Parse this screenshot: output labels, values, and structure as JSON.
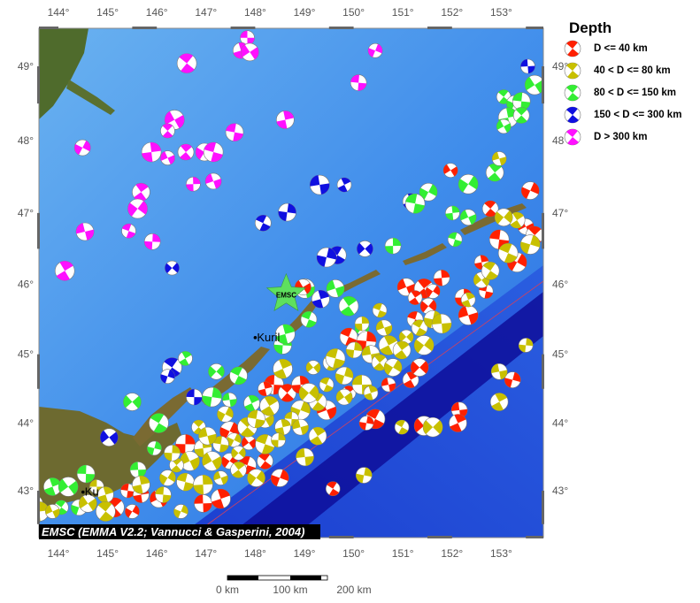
{
  "map": {
    "projection": "mercator",
    "lon_range": [
      143.6,
      153.9
    ],
    "lat_range": [
      42.4,
      49.5
    ],
    "lon_ticks": [
      "144°",
      "145°",
      "146°",
      "147°",
      "148°",
      "149°",
      "150°",
      "151°",
      "152°",
      "153°"
    ],
    "lat_ticks": [
      "49°",
      "48°",
      "47°",
      "46°",
      "45°",
      "44°",
      "43°"
    ],
    "colors": {
      "shallow_ocean": "#5aa6ec",
      "ocean": "#2f78e6",
      "trench": "#0a0a8c",
      "land": "#7a6a32"
    },
    "places": [
      {
        "name": "Kuril",
        "lon": 148.0,
        "lat": 45.24
      },
      {
        "name": "Ku",
        "lon": 144.5,
        "lat": 42.98
      }
    ],
    "emsc_marker": {
      "label": "EMSC",
      "lon": 148.63,
      "lat": 45.86,
      "color": "#5ee05e"
    },
    "credit": "EMSC (EMMA V2.2; Vannucci & Gasperini, 2004)",
    "scale_bar": {
      "labels": [
        "0 km",
        "100 km",
        "200 km"
      ]
    }
  },
  "legend": {
    "title": "Depth",
    "items": [
      {
        "label": "D <= 40 km",
        "color": "#ff2000"
      },
      {
        "label": "40 < D <= 80 km",
        "color": "#c8c000"
      },
      {
        "label": "80 < D <= 150 km",
        "color": "#33ee33"
      },
      {
        "label": "150 < D <= 300 km",
        "color": "#1010e0"
      },
      {
        "label": "D > 300 km",
        "color": "#ff10ff"
      }
    ]
  },
  "events": [
    [
      147.84,
      49.38,
      4
    ],
    [
      147.71,
      49.21,
      4
    ],
    [
      147.89,
      49.19,
      4
    ],
    [
      146.61,
      49.04,
      4
    ],
    [
      150.44,
      49.21,
      4
    ],
    [
      150.1,
      48.78,
      4
    ],
    [
      148.61,
      48.28,
      4
    ],
    [
      146.36,
      48.28,
      4
    ],
    [
      146.22,
      48.13,
      4
    ],
    [
      144.49,
      47.9,
      4
    ],
    [
      147.58,
      48.11,
      4
    ],
    [
      145.89,
      47.84,
      4
    ],
    [
      146.22,
      47.76,
      4
    ],
    [
      146.59,
      47.84,
      4
    ],
    [
      146.97,
      47.84,
      4
    ],
    [
      147.15,
      47.84,
      4
    ],
    [
      146.74,
      47.4,
      4
    ],
    [
      147.15,
      47.44,
      4
    ],
    [
      145.68,
      47.29,
      4
    ],
    [
      145.61,
      47.06,
      4
    ],
    [
      145.43,
      46.75,
      4
    ],
    [
      145.91,
      46.6,
      4
    ],
    [
      144.54,
      46.74,
      4
    ],
    [
      144.13,
      46.19,
      4
    ],
    [
      146.31,
      46.23,
      3
    ],
    [
      148.16,
      46.86,
      3
    ],
    [
      148.65,
      47.01,
      3
    ],
    [
      149.31,
      47.39,
      3
    ],
    [
      149.81,
      47.39,
      3
    ],
    [
      150.23,
      46.5,
      3
    ],
    [
      149.67,
      46.41,
      3
    ],
    [
      149.45,
      46.38,
      3
    ],
    [
      153.54,
      49.0,
      3
    ],
    [
      151.16,
      47.16,
      3
    ],
    [
      145.03,
      43.79,
      3
    ],
    [
      146.31,
      44.81,
      3
    ],
    [
      146.22,
      44.68,
      3
    ],
    [
      146.76,
      44.38,
      3
    ],
    [
      149.33,
      45.79,
      3
    ],
    [
      153.68,
      48.75,
      2
    ],
    [
      153.05,
      48.59,
      2
    ],
    [
      153.27,
      48.5,
      2
    ],
    [
      153.41,
      48.53,
      2
    ],
    [
      153.14,
      48.31,
      2
    ],
    [
      153.05,
      48.19,
      2
    ],
    [
      153.41,
      48.34,
      2
    ],
    [
      151.52,
      47.29,
      2
    ],
    [
      151.25,
      47.13,
      2
    ],
    [
      152.01,
      47.0,
      2
    ],
    [
      152.33,
      46.94,
      2
    ],
    [
      152.87,
      47.56,
      2
    ],
    [
      152.33,
      47.4,
      2
    ],
    [
      152.06,
      46.63,
      2
    ],
    [
      150.8,
      46.54,
      2
    ],
    [
      149.63,
      45.94,
      2
    ],
    [
      149.9,
      45.69,
      2
    ],
    [
      150.17,
      45.38,
      2
    ],
    [
      149.09,
      45.5,
      2
    ],
    [
      148.56,
      45.13,
      2
    ],
    [
      149.01,
      45.94,
      2
    ],
    [
      146.58,
      44.94,
      2
    ],
    [
      147.21,
      44.75,
      2
    ],
    [
      147.66,
      44.69,
      2
    ],
    [
      147.12,
      44.38,
      2
    ],
    [
      147.48,
      44.34,
      2
    ],
    [
      147.93,
      44.29,
      2
    ],
    [
      145.5,
      44.31,
      2
    ],
    [
      146.04,
      44.0,
      2
    ],
    [
      145.95,
      43.63,
      2
    ],
    [
      145.62,
      43.31,
      2
    ],
    [
      143.88,
      43.06,
      2
    ],
    [
      144.2,
      43.06,
      2
    ],
    [
      144.06,
      42.75,
      2
    ],
    [
      144.42,
      42.75,
      2
    ],
    [
      144.56,
      43.25,
      2
    ],
    [
      148.61,
      45.29,
      2
    ],
    [
      151.97,
      47.59,
      0
    ],
    [
      152.78,
      47.06,
      0
    ],
    [
      153.59,
      47.31,
      0
    ],
    [
      152.96,
      46.63,
      0
    ],
    [
      152.6,
      46.31,
      0
    ],
    [
      153.5,
      46.81,
      0
    ],
    [
      153.68,
      46.69,
      0
    ],
    [
      153.32,
      46.31,
      0
    ],
    [
      152.69,
      45.9,
      0
    ],
    [
      151.79,
      46.09,
      0
    ],
    [
      151.07,
      45.96,
      0
    ],
    [
      151.43,
      45.94,
      0
    ],
    [
      151.61,
      45.9,
      0
    ],
    [
      151.25,
      45.5,
      0
    ],
    [
      152.24,
      45.81,
      0
    ],
    [
      152.33,
      45.56,
      0
    ],
    [
      151.25,
      45.81,
      0
    ],
    [
      151.52,
      45.69,
      0
    ],
    [
      149.9,
      45.25,
      0
    ],
    [
      150.26,
      45.19,
      0
    ],
    [
      150.71,
      44.56,
      0
    ],
    [
      151.16,
      44.63,
      0
    ],
    [
      151.34,
      44.81,
      0
    ],
    [
      150.44,
      44.06,
      0
    ],
    [
      150.26,
      44.0,
      0
    ],
    [
      152.15,
      44.19,
      0
    ],
    [
      152.12,
      44.0,
      0
    ],
    [
      151.43,
      43.96,
      0
    ],
    [
      149.58,
      43.03,
      0
    ],
    [
      153.23,
      44.63,
      0
    ],
    [
      146.94,
      42.81,
      0
    ],
    [
      147.3,
      42.88,
      0
    ],
    [
      147.87,
      43.71,
      0
    ],
    [
      148.2,
      43.44,
      0
    ],
    [
      148.5,
      43.19,
      0
    ],
    [
      148.38,
      44.56,
      0
    ],
    [
      148.2,
      44.5,
      0
    ],
    [
      148.97,
      45.96,
      0
    ],
    [
      148.65,
      44.44,
      0
    ],
    [
      147.48,
      43.88,
      0
    ],
    [
      145.41,
      43.0,
      0
    ],
    [
      145.68,
      42.94,
      0
    ],
    [
      146.04,
      42.88,
      0
    ],
    [
      145.14,
      42.75,
      0
    ],
    [
      145.5,
      42.69,
      0
    ],
    [
      143.52,
      42.81,
      0
    ],
    [
      148.92,
      44.56,
      0
    ],
    [
      149.45,
      44.19,
      0
    ],
    [
      149.9,
      44.44,
      0
    ],
    [
      147.48,
      43.44,
      0
    ],
    [
      147.84,
      43.38,
      0
    ],
    [
      146.58,
      43.69,
      0
    ],
    [
      152.96,
      47.75,
      1
    ],
    [
      153.32,
      46.9,
      1
    ],
    [
      153.05,
      46.94,
      1
    ],
    [
      153.14,
      46.44,
      1
    ],
    [
      153.5,
      45.13,
      1
    ],
    [
      152.96,
      44.75,
      1
    ],
    [
      152.96,
      44.31,
      1
    ],
    [
      151.61,
      43.94,
      1
    ],
    [
      150.98,
      43.94,
      1
    ],
    [
      150.21,
      43.23,
      1
    ],
    [
      149.01,
      43.5,
      1
    ],
    [
      148.56,
      44.79,
      1
    ],
    [
      149.18,
      44.81,
      1
    ],
    [
      149.54,
      44.88,
      1
    ],
    [
      149.81,
      44.69,
      1
    ],
    [
      150.17,
      44.56,
      1
    ],
    [
      150.35,
      44.44,
      1
    ],
    [
      149.81,
      44.38,
      1
    ],
    [
      149.27,
      44.31,
      1
    ],
    [
      148.92,
      44.19,
      1
    ],
    [
      148.74,
      44.06,
      1
    ],
    [
      148.56,
      43.94,
      1
    ],
    [
      148.2,
      44.06,
      1
    ],
    [
      147.84,
      43.94,
      1
    ],
    [
      147.57,
      43.75,
      1
    ],
    [
      147.3,
      43.69,
      1
    ],
    [
      146.94,
      43.63,
      1
    ],
    [
      146.67,
      43.44,
      1
    ],
    [
      146.4,
      43.38,
      1
    ],
    [
      146.22,
      43.19,
      1
    ],
    [
      146.58,
      43.13,
      1
    ],
    [
      146.94,
      43.09,
      1
    ],
    [
      147.3,
      43.19,
      1
    ],
    [
      147.66,
      43.31,
      1
    ],
    [
      148.02,
      43.19,
      1
    ],
    [
      148.2,
      43.69,
      1
    ],
    [
      148.47,
      43.75,
      1
    ],
    [
      148.92,
      43.94,
      1
    ],
    [
      149.27,
      43.81,
      1
    ],
    [
      149.09,
      44.44,
      1
    ],
    [
      149.45,
      44.56,
      1
    ],
    [
      150.01,
      45.06,
      1
    ],
    [
      150.35,
      45.0,
      1
    ],
    [
      150.71,
      45.13,
      1
    ],
    [
      151.07,
      45.25,
      1
    ],
    [
      151.34,
      45.38,
      1
    ],
    [
      151.61,
      45.5,
      1
    ],
    [
      151.79,
      45.44,
      1
    ],
    [
      152.33,
      45.78,
      1
    ],
    [
      152.6,
      46.06,
      1
    ],
    [
      152.78,
      46.19,
      1
    ],
    [
      153.59,
      46.56,
      1
    ],
    [
      144.78,
      43.06,
      1
    ],
    [
      144.96,
      42.94,
      1
    ],
    [
      144.6,
      42.81,
      1
    ],
    [
      144.96,
      42.69,
      1
    ],
    [
      146.49,
      42.69,
      1
    ],
    [
      146.13,
      42.94,
      1
    ],
    [
      145.68,
      43.09,
      1
    ],
    [
      147.12,
      43.44,
      1
    ],
    [
      146.85,
      43.94,
      1
    ],
    [
      147.39,
      44.13,
      1
    ],
    [
      148.02,
      44.06,
      1
    ],
    [
      143.61,
      42.69,
      1
    ],
    [
      143.88,
      42.69,
      1
    ],
    [
      150.53,
      44.88,
      1
    ],
    [
      150.8,
      44.81,
      1
    ],
    [
      149.63,
      44.94,
      1
    ],
    [
      150.17,
      45.44,
      1
    ],
    [
      150.62,
      45.38,
      1
    ],
    [
      150.98,
      45.06,
      1
    ],
    [
      151.43,
      45.13,
      1
    ],
    [
      150.53,
      45.63,
      1
    ],
    [
      146.31,
      43.56,
      1
    ],
    [
      147.03,
      43.81,
      1
    ],
    [
      148.29,
      44.25,
      1
    ],
    [
      147.66,
      43.56,
      1
    ]
  ]
}
